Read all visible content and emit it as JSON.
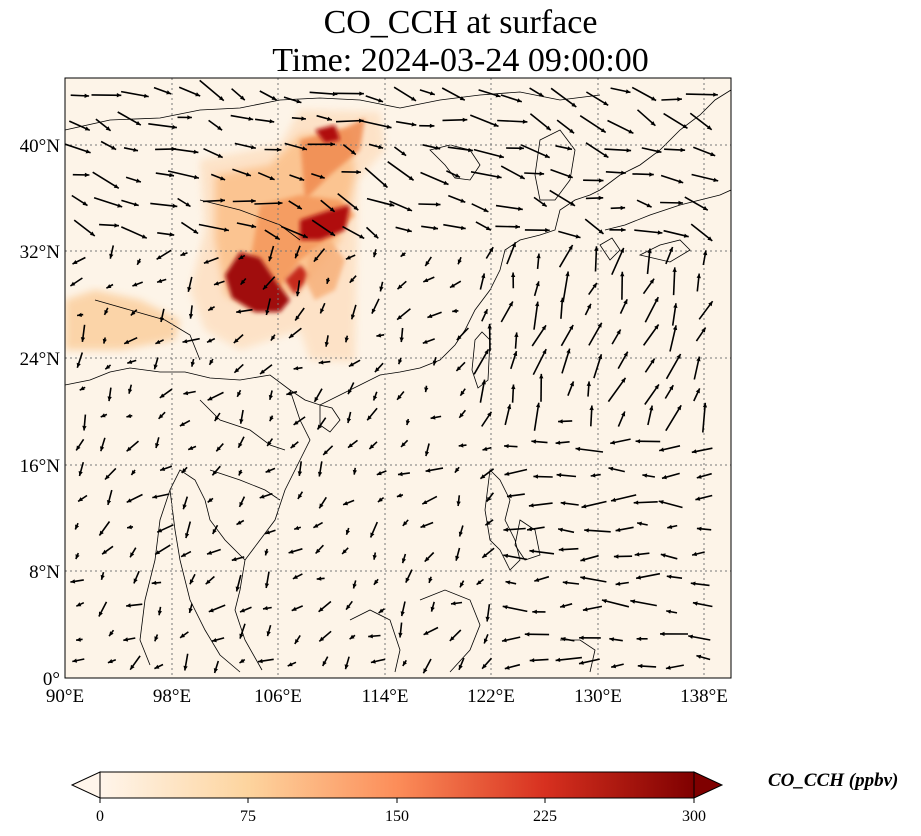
{
  "title": {
    "line1": "CO_CCH at surface",
    "line2": "Time: 2024-03-24 09:00:00"
  },
  "map": {
    "background_color": "#fdf4e8",
    "lon_range": [
      90,
      140
    ],
    "lat_range": [
      0,
      45
    ],
    "lon_ticks": [
      {
        "value": 90,
        "label": "90°E"
      },
      {
        "value": 98,
        "label": "98°E"
      },
      {
        "value": 106,
        "label": "106°E"
      },
      {
        "value": 114,
        "label": "114°E"
      },
      {
        "value": 122,
        "label": "122°E"
      },
      {
        "value": 130,
        "label": "130°E"
      },
      {
        "value": 138,
        "label": "138°E"
      }
    ],
    "lat_ticks": [
      {
        "value": 0,
        "label": "0°"
      },
      {
        "value": 8,
        "label": "8°N"
      },
      {
        "value": 16,
        "label": "16°N"
      },
      {
        "value": 24,
        "label": "24°N"
      },
      {
        "value": 32,
        "label": "32°N"
      },
      {
        "value": 40,
        "label": "40°N"
      }
    ],
    "gridlines": "dotted"
  },
  "colorbar": {
    "ticks": [
      "0",
      "75",
      "150",
      "225",
      "300"
    ],
    "label": "CO_CCH (ppbv)",
    "colors": [
      "#fff5eb",
      "#fdd49e",
      "#fc8d59",
      "#d7301f",
      "#7f0000"
    ],
    "extend": "both"
  }
}
